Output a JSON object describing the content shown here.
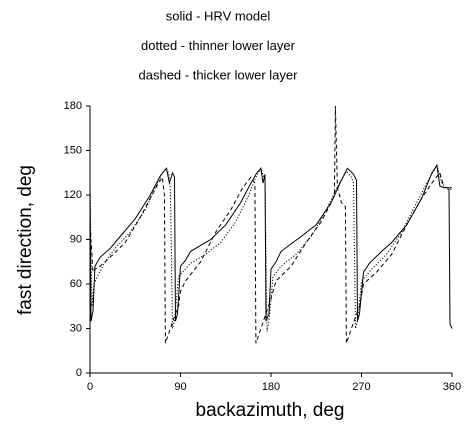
{
  "chart_data": {
    "type": "line",
    "xlabel": "backazimuth, deg",
    "ylabel": "fast direction, deg",
    "xlim": [
      0,
      360
    ],
    "xticks": [
      0,
      90,
      180,
      270,
      360
    ],
    "ylim": [
      0,
      180
    ],
    "yticks": [
      0,
      30,
      60,
      90,
      120,
      150,
      180
    ],
    "grid": false,
    "series": [
      {
        "name": "solid - HRV model",
        "color": "#000000",
        "dash": "solid",
        "x": [
          0,
          1,
          3,
          5,
          10,
          20,
          30,
          45,
          60,
          70,
          76,
          79,
          82,
          84,
          85,
          87,
          90,
          95,
          100,
          110,
          120,
          135,
          150,
          160,
          166,
          170,
          172,
          174,
          175,
          178,
          180,
          185,
          190,
          200,
          210,
          225,
          240,
          250,
          256,
          262,
          265,
          266,
          268,
          272,
          278,
          290,
          300,
          315,
          330,
          340,
          345,
          348,
          352,
          357,
          358,
          360
        ],
        "values": [
          127,
          35,
          42,
          72,
          78,
          84,
          92,
          104,
          120,
          133,
          138,
          128,
          135,
          132,
          35,
          40,
          72,
          76,
          82,
          86,
          90,
          100,
          115,
          128,
          135,
          138,
          128,
          134,
          35,
          40,
          70,
          75,
          82,
          87,
          92,
          100,
          115,
          130,
          138,
          134,
          130,
          35,
          40,
          68,
          74,
          82,
          88,
          100,
          118,
          135,
          140,
          126,
          125,
          125,
          33,
          30
        ]
      },
      {
        "name": "dotted - thinner lower layer",
        "color": "#000000",
        "dash": "dotted",
        "x": [
          0,
          2,
          4,
          8,
          15,
          25,
          40,
          55,
          65,
          72,
          76,
          78,
          80,
          82,
          84,
          88,
          92,
          100,
          115,
          130,
          145,
          158,
          165,
          170,
          174,
          176,
          178,
          182,
          190,
          205,
          220,
          235,
          248,
          255,
          260,
          262,
          264,
          266,
          270,
          280,
          295,
          310,
          325,
          338,
          345,
          350,
          355,
          360
        ],
        "values": [
          125,
          45,
          60,
          66,
          75,
          84,
          95,
          110,
          125,
          135,
          138,
          135,
          125,
          30,
          35,
          65,
          68,
          74,
          80,
          88,
          102,
          120,
          132,
          138,
          130,
          28,
          35,
          65,
          72,
          80,
          92,
          110,
          128,
          136,
          132,
          128,
          30,
          35,
          62,
          70,
          80,
          95,
          115,
          132,
          140,
          128,
          124,
          124
        ]
      },
      {
        "name": "dashed - thicker lower layer",
        "color": "#000000",
        "dash": "dashed",
        "x": [
          0,
          3,
          5,
          10,
          20,
          35,
          50,
          60,
          68,
          72,
          74,
          75,
          80,
          85,
          88,
          90,
          95,
          110,
          125,
          140,
          152,
          160,
          164,
          165,
          170,
          180,
          185,
          200,
          215,
          230,
          240,
          243,
          244,
          246,
          250,
          254,
          255,
          260,
          268,
          272,
          285,
          300,
          315,
          330,
          342,
          348,
          352,
          360
        ],
        "values": [
          100,
          68,
          70,
          72,
          78,
          88,
          105,
          118,
          128,
          132,
          120,
          20,
          30,
          40,
          45,
          55,
          62,
          75,
          95,
          110,
          125,
          132,
          128,
          20,
          30,
          50,
          62,
          72,
          88,
          102,
          115,
          120,
          180,
          125,
          115,
          112,
          20,
          30,
          45,
          60,
          68,
          80,
          100,
          118,
          130,
          135,
          125,
          125
        ]
      }
    ]
  }
}
